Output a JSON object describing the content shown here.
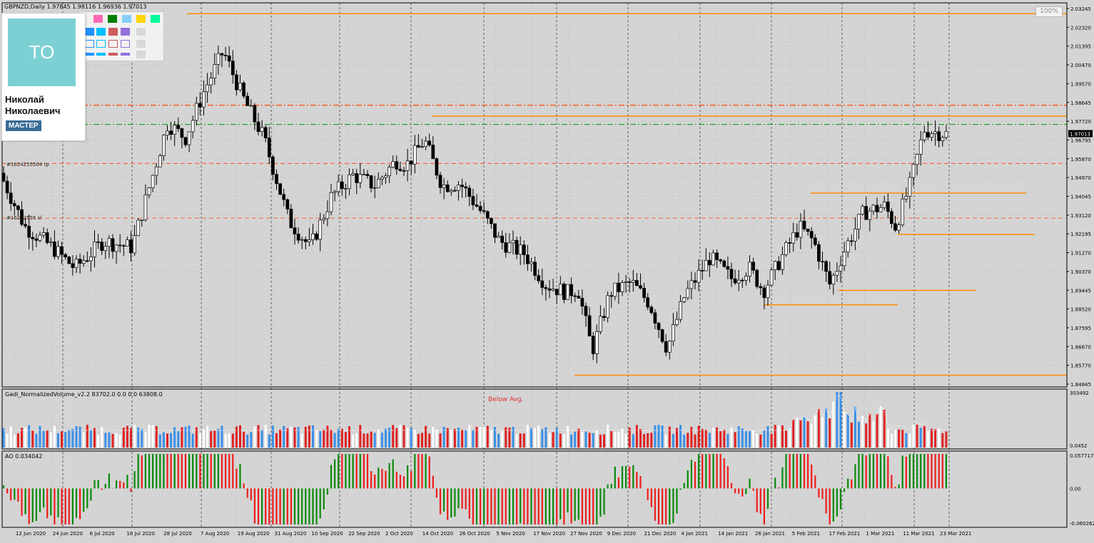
{
  "window": {
    "title": "GBPNZD,Daily  1.97845 1.98116 1.96936 1.97013",
    "zoom": "100%"
  },
  "price_axis": {
    "labels": [
      "2.03245",
      "2.02320",
      "2.01395",
      "2.00470",
      "1.99570",
      "1.98645",
      "1.97720",
      "1.96795",
      "1.95870",
      "1.94970",
      "1.94045",
      "1.93120",
      "1.92195",
      "1.91270",
      "1.90370",
      "1.89445",
      "1.88520",
      "1.87595",
      "1.86670",
      "1.85770",
      "1.84845"
    ],
    "current": "1.97013"
  },
  "date_axis": [
    "12 Jun 2020",
    "24 Jun 2020",
    "6 Jul 2020",
    "16 Jul 2020",
    "28 Jul 2020",
    "7 Aug 2020",
    "19 Aug 2020",
    "31 Aug 2020",
    "10 Sep 2020",
    "22 Sep 2020",
    "2 Oct 2020",
    "14 Oct 2020",
    "26 Oct 2020",
    "5 Nov 2020",
    "17 Nov 2020",
    "27 Nov 2020",
    "9 Dec 2020",
    "21 Dec 2020",
    "4 Jan 2021",
    "14 Jan 2021",
    "26 Jan 2021",
    "5 Feb 2021",
    "17 Feb 2021",
    "1 Mar 2021",
    "11 Mar 2021",
    "23 Mar 2021"
  ],
  "order_tags": {
    "tp": "#1624255504 tp",
    "sl": "#16242555 sl"
  },
  "volume_indicator": {
    "label": "Gadi_NormalizedVolume_v2.2 83702.0 0.0 0.0 63808.0",
    "annotation": "Below Avg.",
    "scale_top": "303492",
    "scale_bottom": "0.0452"
  },
  "ao_indicator": {
    "label": "AO 0.034042",
    "scale_top": "0.057717",
    "scale_mid": "0.00",
    "scale_bottom": "-0.060262"
  },
  "profile": {
    "initials": "TO",
    "name": "Николай Николаевич",
    "badge": "МАСТЕР"
  },
  "colors": {
    "background": "#d4d4d4",
    "bull_candle": "#ffffff",
    "bear_candle": "#000000",
    "level_line": "#ff8c00",
    "tp_line": "#ff4500",
    "sl_line": "#009900",
    "vol_blue": "#3a8fe8",
    "vol_red": "#e02020",
    "vol_white": "#ffffff",
    "ao_green": "#0a8a0a",
    "ao_red": "#ee1c1c"
  },
  "palette": [
    "#ff69b4",
    "#008000",
    "#87cefa",
    "#ffd700",
    "#00fa9a",
    "#1e90ff",
    "#00bfff",
    "#cd5c5c",
    "#9370db"
  ],
  "chart_data": {
    "type": "candlestick",
    "symbol": "GBPNZD",
    "timeframe": "Daily",
    "ohlc_last": {
      "open": 1.97845,
      "high": 1.98116,
      "low": 1.96936,
      "close": 1.97013
    },
    "ylim": [
      1.84845,
      2.03245
    ],
    "horizontal_levels": [
      2.0282,
      1.9786,
      1.9413,
      1.9213,
      1.8942,
      1.8872,
      1.8531
    ],
    "trade_levels": {
      "take_profit": 1.9839,
      "stop_loss": 1.9746,
      "dash_upper": 1.9557,
      "dash_lower": 1.9292
    },
    "volume_scale": [
      0.0452,
      303492
    ],
    "ao_scale": [
      -0.060262,
      0.057717
    ]
  }
}
